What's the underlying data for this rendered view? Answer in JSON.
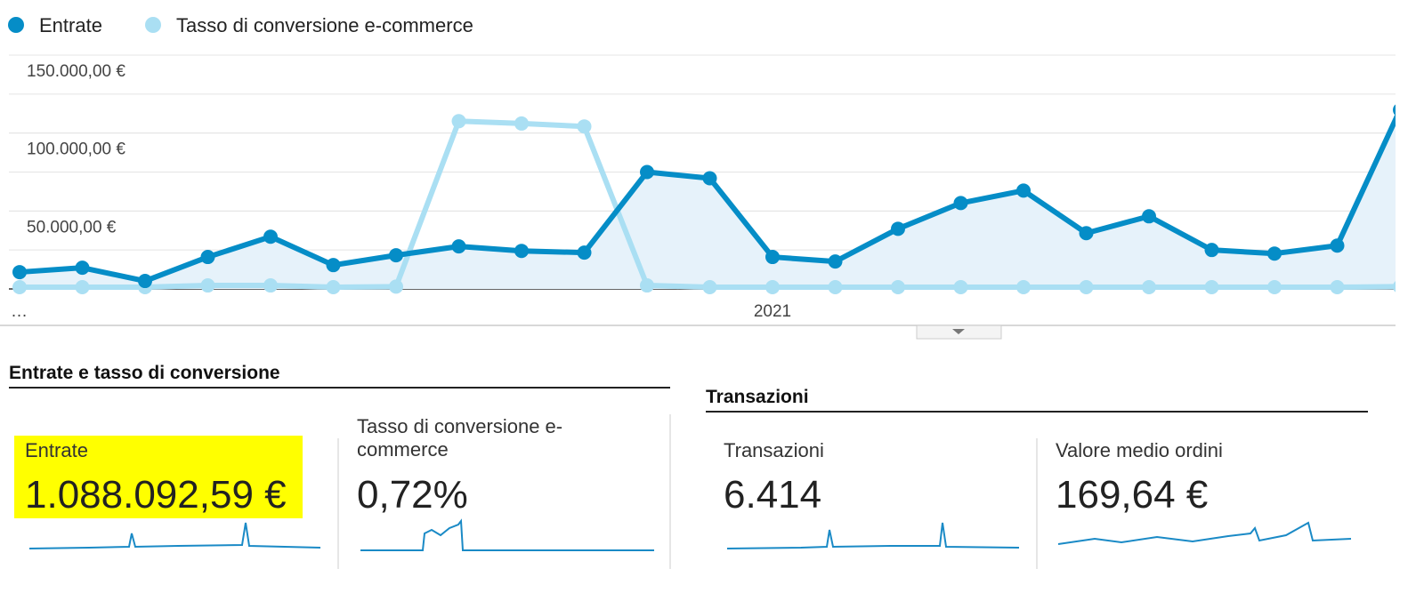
{
  "chart_data": {
    "type": "line",
    "categories": [
      "…",
      null,
      null,
      null,
      null,
      null,
      null,
      null,
      null,
      null,
      null,
      null,
      "2021",
      null,
      null,
      null,
      null,
      null,
      null,
      null,
      null,
      null,
      null
    ],
    "series": [
      {
        "name": "Entrate",
        "color": "#058dc7",
        "values": [
          10800,
          13600,
          5100,
          20500,
          33500,
          15300,
          21600,
          27300,
          24400,
          23300,
          75000,
          71000,
          20500,
          17600,
          38600,
          55100,
          63100,
          35800,
          46600,
          25000,
          22700,
          27800,
          114800
        ]
      },
      {
        "name": "Tasso di conversione e-commerce",
        "color": "#aadff3",
        "axis": "y2",
        "values": [
          0.03,
          0.03,
          0.03,
          0.06,
          0.06,
          0.03,
          0.04,
          2.87,
          2.83,
          2.78,
          0.06,
          0.03,
          0.03,
          0.03,
          0.03,
          0.03,
          0.03,
          0.03,
          0.03,
          0.03,
          0.03,
          0.03,
          0.04
        ]
      }
    ],
    "ylim": [
      0,
      150000
    ],
    "yticks": [
      {
        "value": 50000,
        "label": "50.000,00 €"
      },
      {
        "value": 100000,
        "label": "100.000,00 €"
      },
      {
        "value": 150000,
        "label": "150.000,00 €"
      }
    ],
    "ygrid": [
      25000,
      50000,
      75000,
      100000,
      125000,
      150000
    ],
    "y2lim": [
      0,
      4
    ],
    "area": true,
    "grid": true,
    "legend": "top-left"
  },
  "sections": [
    {
      "title": "Entrate e tasso di conversione",
      "metrics": [
        {
          "label": "Entrate",
          "value": "1.088.092,59 €"
        },
        {
          "label": "Tasso di conversione e-commerce",
          "value": "0,72%"
        }
      ]
    },
    {
      "title": "Transazioni",
      "metrics": [
        {
          "label": "Transazioni",
          "value": "6.414"
        },
        {
          "label": "Valore medio ordini",
          "value": "169,64 €"
        }
      ]
    }
  ]
}
